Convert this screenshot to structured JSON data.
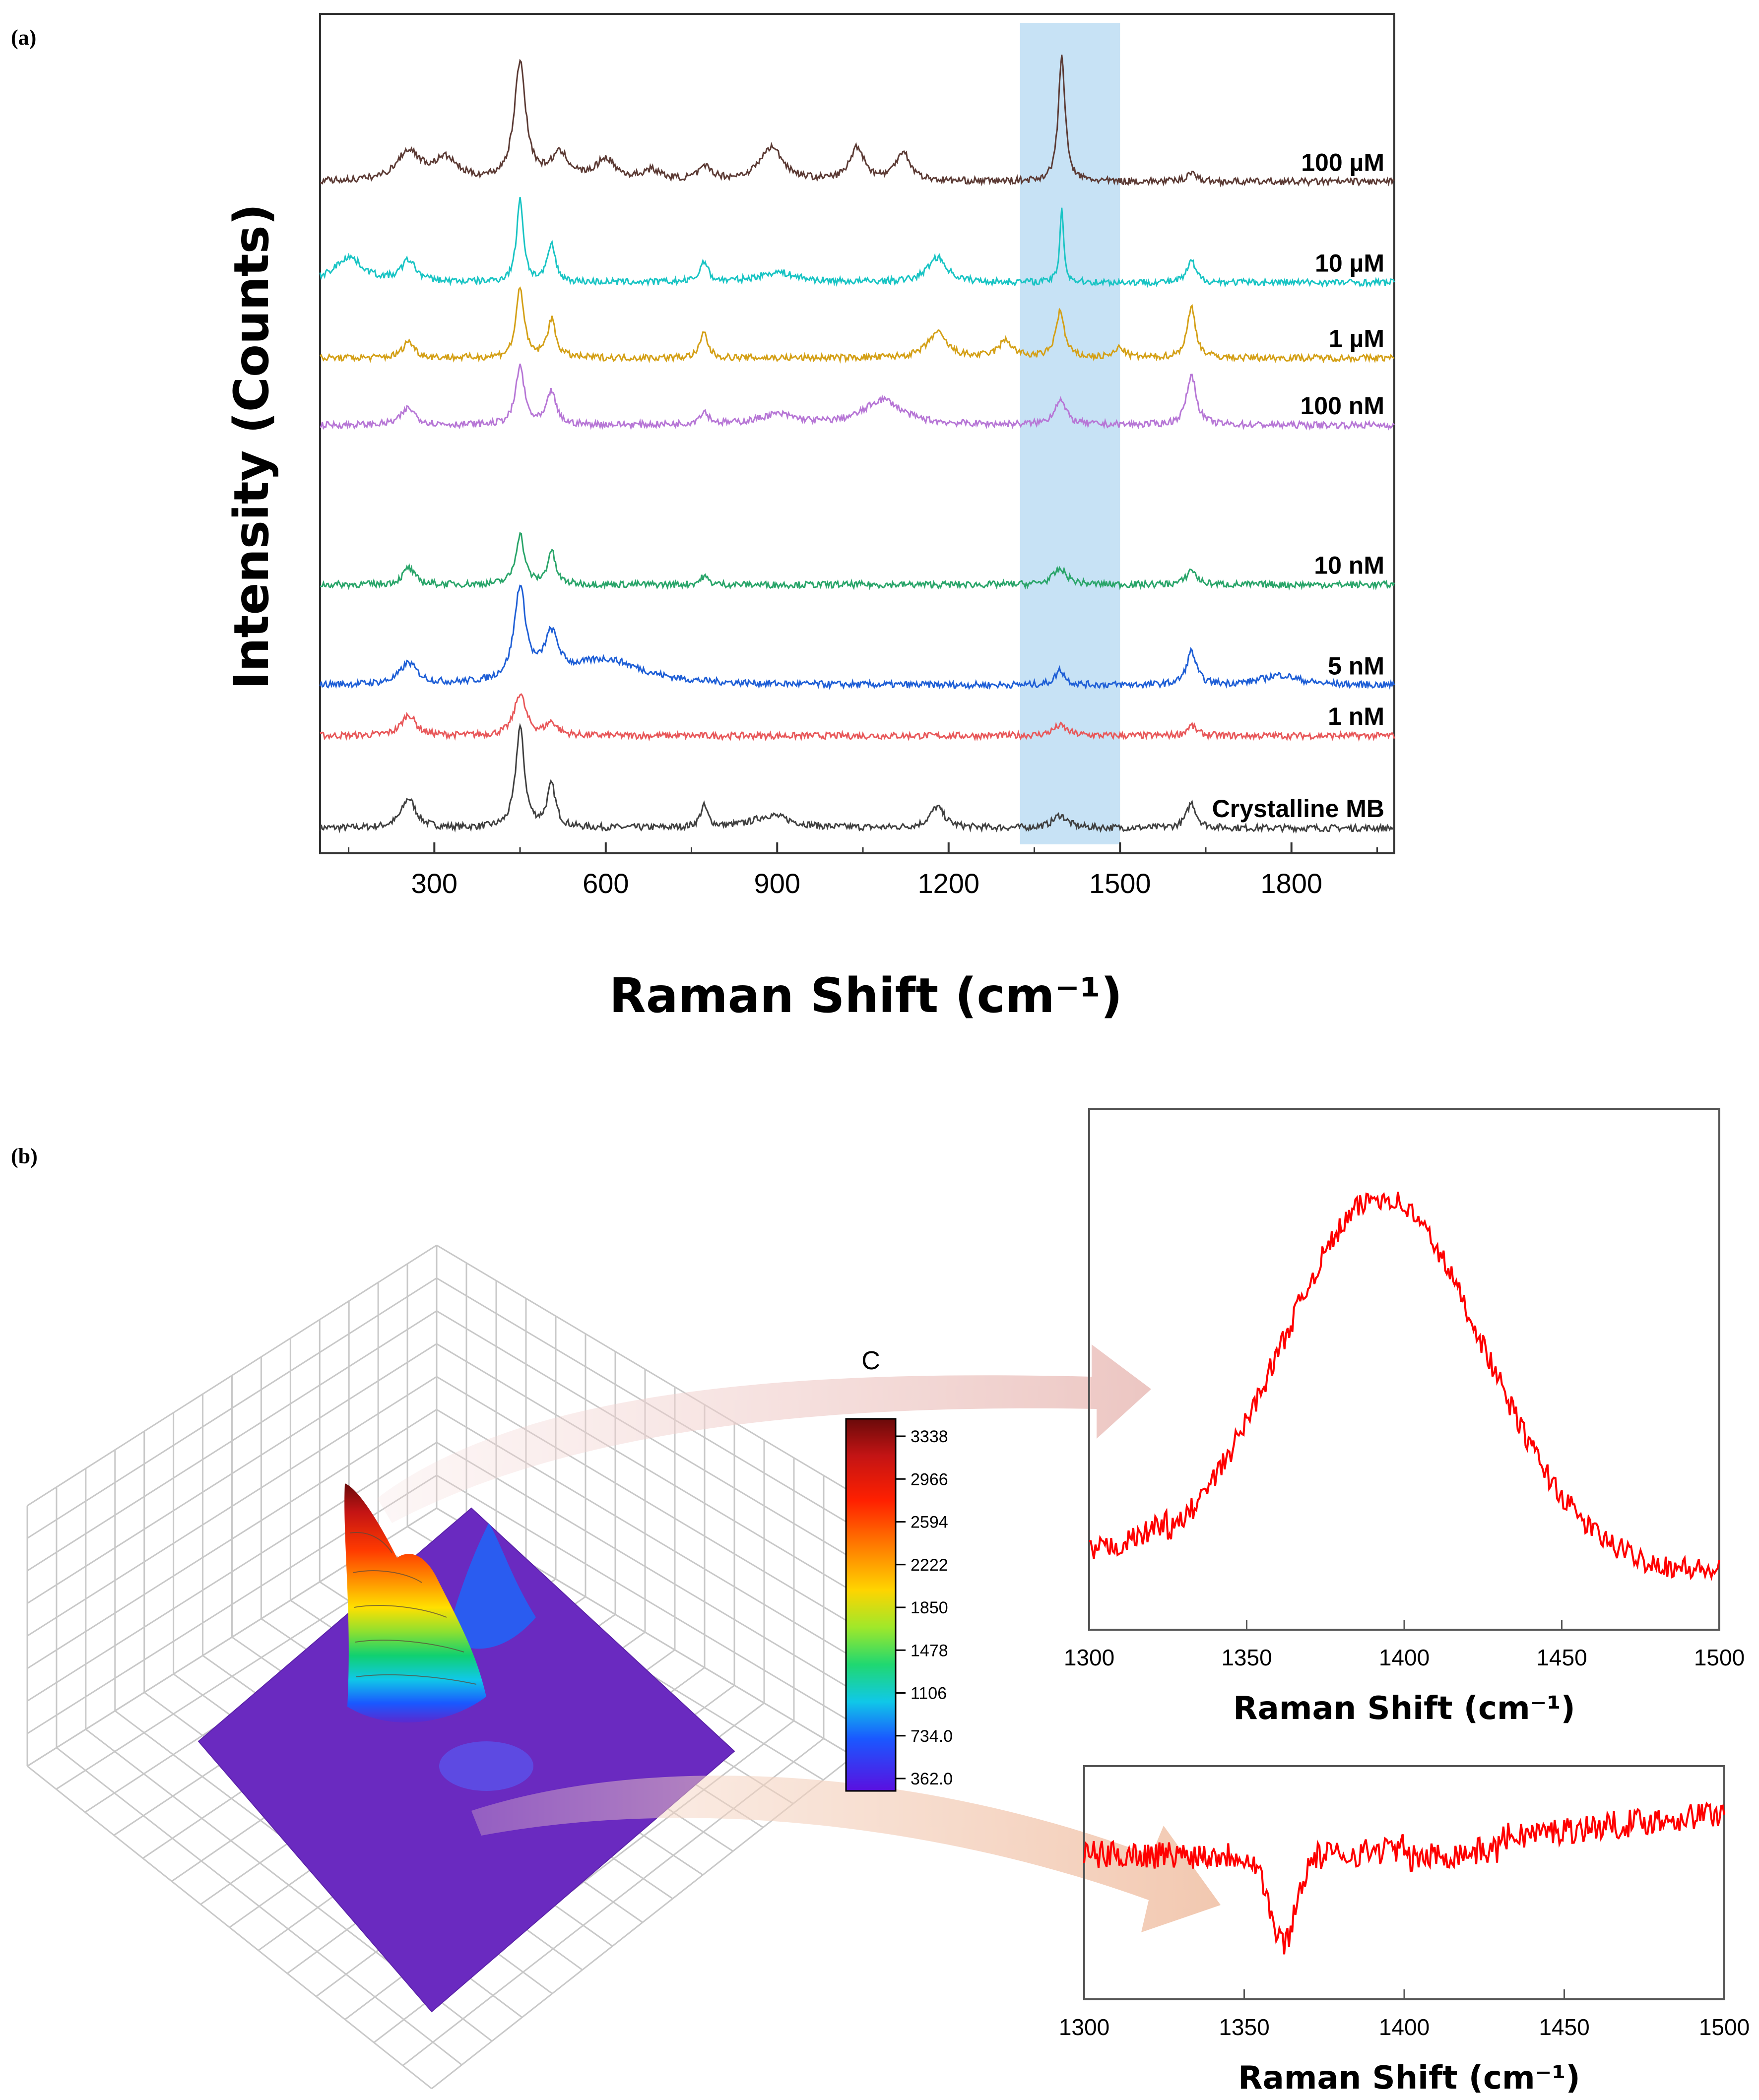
{
  "panel_a": {
    "label": "(a)",
    "chart_data": {
      "type": "line",
      "xlabel": "Raman Shift (cm⁻¹)",
      "ylabel": "Intensity (Counts)",
      "xlim": [
        100,
        1980
      ],
      "xticks": [
        300,
        600,
        900,
        1200,
        1500,
        1800
      ],
      "highlight_band": [
        1325,
        1500
      ],
      "series": [
        {
          "name": "Crystalline MB",
          "color": "#404040",
          "baseline": 0.03,
          "peaks": [
            [
              255,
              0.035,
              15
            ],
            [
              450,
              0.12,
              9
            ],
            [
              505,
              0.05,
              9
            ],
            [
              772,
              0.025,
              8
            ],
            [
              890,
              0.015,
              40
            ],
            [
              1180,
              0.025,
              15
            ],
            [
              1395,
              0.015,
              15
            ],
            [
              1625,
              0.03,
              10
            ]
          ]
        },
        {
          "name": "1 nM",
          "color": "#e8585a",
          "baseline": 0.14,
          "peaks": [
            [
              255,
              0.025,
              15
            ],
            [
              450,
              0.05,
              12
            ],
            [
              505,
              0.015,
              12
            ],
            [
              1395,
              0.012,
              15
            ],
            [
              1625,
              0.012,
              10
            ]
          ]
        },
        {
          "name": "5 nM",
          "color": "#1f5fd6",
          "baseline": 0.2,
          "peaks": [
            [
              255,
              0.025,
              18
            ],
            [
              450,
              0.11,
              12
            ],
            [
              505,
              0.05,
              15
            ],
            [
              600,
              0.03,
              80
            ],
            [
              1395,
              0.018,
              10
            ],
            [
              1625,
              0.04,
              10
            ],
            [
              1780,
              0.012,
              40
            ]
          ]
        },
        {
          "name": "10 nM",
          "color": "#2aa56a",
          "baseline": 0.32,
          "peaks": [
            [
              255,
              0.02,
              12
            ],
            [
              450,
              0.06,
              9
            ],
            [
              505,
              0.04,
              8
            ],
            [
              772,
              0.01,
              8
            ],
            [
              1395,
              0.018,
              15
            ],
            [
              1625,
              0.018,
              10
            ]
          ]
        },
        {
          "name": "100 nM",
          "color": "#b777d6",
          "baseline": 0.51,
          "peaks": [
            [
              255,
              0.02,
              15
            ],
            [
              450,
              0.07,
              9
            ],
            [
              505,
              0.04,
              9
            ],
            [
              772,
              0.015,
              10
            ],
            [
              900,
              0.012,
              40
            ],
            [
              1085,
              0.03,
              40
            ],
            [
              1395,
              0.03,
              12
            ],
            [
              1625,
              0.06,
              10
            ]
          ]
        },
        {
          "name": "1 µM",
          "color": "#d4a017",
          "baseline": 0.59,
          "peaks": [
            [
              255,
              0.02,
              12
            ],
            [
              450,
              0.085,
              8
            ],
            [
              505,
              0.045,
              9
            ],
            [
              772,
              0.03,
              8
            ],
            [
              1180,
              0.03,
              20
            ],
            [
              1300,
              0.02,
              15
            ],
            [
              1395,
              0.055,
              9
            ],
            [
              1500,
              0.012,
              10
            ],
            [
              1625,
              0.06,
              9
            ]
          ]
        },
        {
          "name": "10 µM",
          "color": "#19c4c4",
          "baseline": 0.68,
          "peaks": [
            [
              150,
              0.03,
              30
            ],
            [
              255,
              0.025,
              15
            ],
            [
              450,
              0.1,
              7
            ],
            [
              505,
              0.045,
              8
            ],
            [
              772,
              0.025,
              8
            ],
            [
              900,
              0.012,
              40
            ],
            [
              1180,
              0.03,
              20
            ],
            [
              1398,
              0.09,
              4
            ],
            [
              1625,
              0.025,
              9
            ]
          ]
        },
        {
          "name": "100 µM",
          "color": "#5c3b35",
          "baseline": 0.8,
          "peaks": [
            [
              255,
              0.035,
              25
            ],
            [
              320,
              0.025,
              25
            ],
            [
              450,
              0.14,
              12
            ],
            [
              520,
              0.03,
              20
            ],
            [
              600,
              0.025,
              20
            ],
            [
              680,
              0.012,
              20
            ],
            [
              775,
              0.015,
              15
            ],
            [
              890,
              0.04,
              25
            ],
            [
              1040,
              0.04,
              15
            ],
            [
              1120,
              0.035,
              15
            ],
            [
              1398,
              0.15,
              7
            ],
            [
              1625,
              0.012,
              9
            ]
          ]
        }
      ]
    }
  },
  "panel_b": {
    "label": "(b)",
    "colorbar": {
      "title": "C",
      "labels": [
        "3338",
        "2966",
        "2594",
        "2222",
        "1850",
        "1478",
        "1106",
        "734.0",
        "362.0"
      ],
      "colors": [
        "#7a0a0a",
        "#d11b1b",
        "#ff2a00",
        "#ff7a00",
        "#ffd400",
        "#a8e82a",
        "#1fd66e",
        "#10c8e0",
        "#1a58ff",
        "#3a1cff",
        "#5a10e0"
      ]
    },
    "top_inset": {
      "chart_data": {
        "type": "line",
        "xlabel": "Raman Shift (cm⁻¹)",
        "xlim": [
          1300,
          1500
        ],
        "xticks": [
          1300,
          1350,
          1400,
          1450,
          1500
        ],
        "color": "#ff0000",
        "description_profile": "single broad peak centered near 1395"
      }
    },
    "bottom_inset": {
      "chart_data": {
        "type": "line",
        "xlabel": "Raman Shift (cm⁻¹)",
        "xlim": [
          1300,
          1500
        ],
        "xticks": [
          1300,
          1350,
          1400,
          1450,
          1500
        ],
        "color": "#ff0000"
      }
    }
  }
}
